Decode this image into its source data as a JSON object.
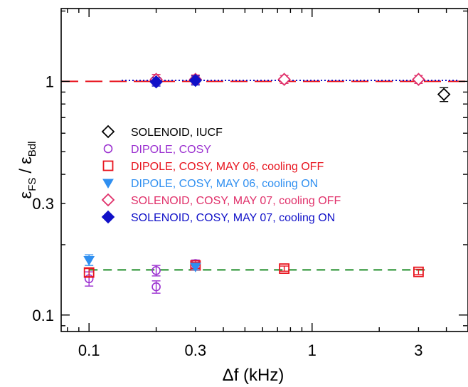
{
  "chart_data": {
    "type": "scatter",
    "xlabel": "Δf (kHz)",
    "ylabel": {
      "eps": "ε",
      "num_sub": "FS",
      "slash": "/",
      "den_sub": "Bdl"
    },
    "x_scale": "log",
    "y_scale": "log",
    "xlim": [
      0.075,
      5.0
    ],
    "ylim": [
      0.085,
      2.05
    ],
    "x_ticks": [
      {
        "value": 0.1,
        "label": "0.1"
      },
      {
        "value": 0.3,
        "label": "0.3"
      },
      {
        "value": 1,
        "label": "1"
      },
      {
        "value": 3,
        "label": "3"
      }
    ],
    "y_ticks": [
      {
        "value": 0.1,
        "label": "0.1"
      },
      {
        "value": 0.3,
        "label": "0.3"
      },
      {
        "value": 1,
        "label": "1"
      }
    ],
    "grid": false,
    "legend_position": "center-left",
    "series": [
      {
        "name": "SOLENOID, IUCF",
        "marker": "diamond-open",
        "color": "#000000",
        "points": [
          {
            "x": 3.9,
            "y": 0.88,
            "err": 0.06
          }
        ]
      },
      {
        "name": "DIPOLE, COSY",
        "marker": "circle-open",
        "color": "#9b30d0",
        "points": [
          {
            "x": 0.1,
            "y": 0.143,
            "err": 0.01
          },
          {
            "x": 0.2,
            "y": 0.132,
            "err": 0.008
          },
          {
            "x": 0.2,
            "y": 0.155,
            "err": 0.008
          },
          {
            "x": 0.3,
            "y": 0.166,
            "err": 0.006
          }
        ]
      },
      {
        "name": "DIPOLE, COSY, MAY 06, cooling OFF",
        "marker": "square-open",
        "color": "#e8141e",
        "points": [
          {
            "x": 0.1,
            "y": 0.152,
            "err": 0.006
          },
          {
            "x": 0.3,
            "y": 0.163,
            "err": 0.005
          },
          {
            "x": 0.75,
            "y": 0.158,
            "err": 0.004
          },
          {
            "x": 3.0,
            "y": 0.153,
            "err": 0.004
          }
        ]
      },
      {
        "name": "DIPOLE, COSY, MAY 06, cooling ON",
        "marker": "triangle-down-filled",
        "color": "#2f8ff0",
        "points": [
          {
            "x": 0.1,
            "y": 0.172,
            "err": 0.009
          },
          {
            "x": 0.3,
            "y": 0.161,
            "err": 0.005
          }
        ]
      },
      {
        "name": "SOLENOID, COSY, MAY 07, cooling OFF",
        "marker": "diamond-open",
        "color": "#e0306a",
        "points": [
          {
            "x": 0.2,
            "y": 1.02,
            "err": 0.05
          },
          {
            "x": 0.3,
            "y": 1.02,
            "err": 0.045
          },
          {
            "x": 0.75,
            "y": 1.02,
            "err": 0.04
          },
          {
            "x": 3.0,
            "y": 1.02,
            "err": 0.04
          }
        ]
      },
      {
        "name": "SOLENOID, COSY, MAY 07, cooling ON",
        "marker": "diamond-filled",
        "color": "#1010c8",
        "points": [
          {
            "x": 0.2,
            "y": 0.995,
            "err": 0.04
          },
          {
            "x": 0.3,
            "y": 1.01,
            "err": 0.045
          }
        ]
      }
    ],
    "reference_lines": [
      {
        "style": "long-dash",
        "color": "#e8141e",
        "y": 1.0,
        "x_from": 0.075,
        "x_to": 5.0
      },
      {
        "style": "dotted",
        "color": "#1010c8",
        "y": 1.01,
        "x_from": 0.14,
        "x_to": 4.5
      },
      {
        "style": "dash",
        "color": "#1e8c28",
        "y": 0.156,
        "x_from": 0.1,
        "x_to": 3.3
      }
    ]
  }
}
